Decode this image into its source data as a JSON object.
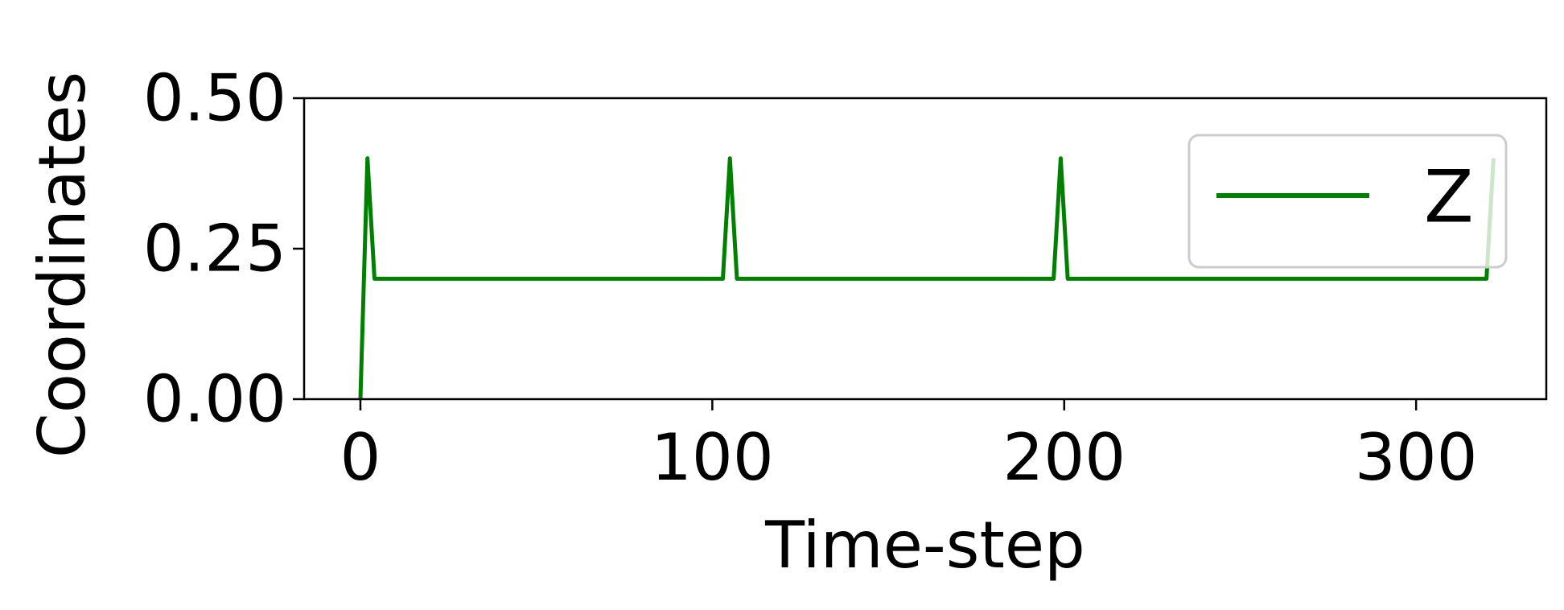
{
  "chart_data": {
    "type": "line",
    "xlabel": "Time-step",
    "ylabel": "Coordinates",
    "xlim": [
      -16,
      337
    ],
    "ylim": [
      0,
      0.5
    ],
    "xticks": [
      0,
      100,
      200,
      300
    ],
    "xtick_labels": [
      "0",
      "100",
      "200",
      "300"
    ],
    "yticks": [
      0,
      0.25,
      0.5
    ],
    "ytick_labels": [
      "0.00",
      "0.25",
      "0.50"
    ],
    "grid": false,
    "legend_position": "top-right",
    "series": [
      {
        "name": "Z",
        "color": "#008000",
        "x": [
          0,
          2,
          4,
          103,
          105,
          107,
          197,
          199,
          201,
          320,
          322
        ],
        "y": [
          0.0,
          0.4,
          0.2,
          0.2,
          0.4,
          0.2,
          0.2,
          0.4,
          0.2,
          0.2,
          0.4
        ]
      }
    ]
  }
}
